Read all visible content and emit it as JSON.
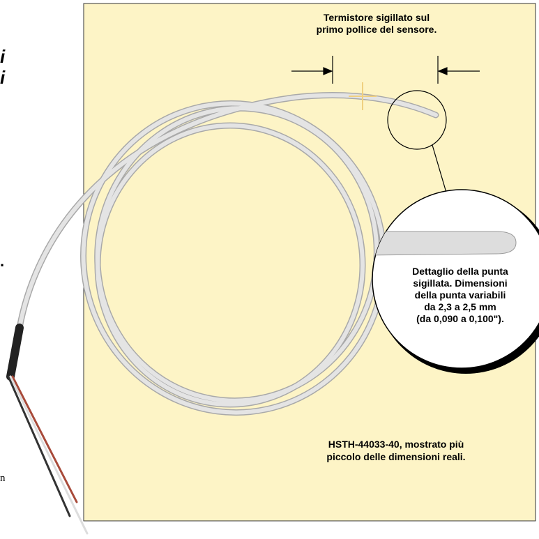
{
  "callout_top": {
    "lines": [
      "Termistore sigillato sul",
      "primo pollice del sensore."
    ]
  },
  "callout_tip": {
    "lines": [
      "Dettaglio della punta",
      "sigillata. Dimensioni",
      "della punta variabili",
      "da 2,3 a 2,5 mm",
      "(da 0,090 a 0,100\")."
    ]
  },
  "caption": {
    "lines": [
      "HSTH-44033-40, mostrato più",
      "piccolo delle dimensioni reali."
    ]
  },
  "cropped_text": {
    "heading_fragments": [
      "i",
      "i"
    ],
    "period": ".",
    "body_fragment": "n"
  }
}
